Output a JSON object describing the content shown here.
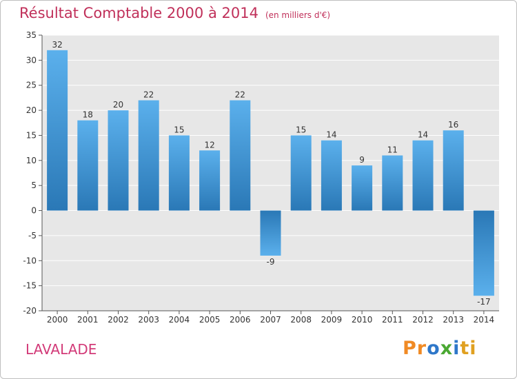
{
  "page": {
    "title": "Résultat Comptable 2000 à 2014",
    "subtitle": "(en milliers d'€)",
    "location": "LAVALADE",
    "logo": [
      "P",
      "r",
      "o",
      "x",
      "i",
      "t",
      "i"
    ]
  },
  "colors": {
    "title": "#c0305a",
    "bar_light": "#5bb0ec",
    "bar_dark": "#2a78b6",
    "plot_bg": "#e7e7e7",
    "gridline": "#ffffff",
    "logo": [
      "#f08a24",
      "#f08a24",
      "#2e77c9",
      "#4aa832",
      "#2e77c9",
      "#e0a020",
      "#e0a020"
    ]
  },
  "chart_data": {
    "type": "bar",
    "title": "Résultat Comptable 2000 à 2014",
    "subtitle": "(en milliers d'€)",
    "categories": [
      "2000",
      "2001",
      "2002",
      "2003",
      "2004",
      "2005",
      "2006",
      "2007",
      "2008",
      "2009",
      "2010",
      "2011",
      "2012",
      "2013",
      "2014"
    ],
    "values": [
      32,
      18,
      20,
      22,
      15,
      12,
      22,
      -9,
      15,
      14,
      9,
      11,
      14,
      16,
      -17
    ],
    "labels": [
      "32",
      "18",
      "20",
      "22",
      "15",
      "12",
      "22",
      "-9",
      "15",
      "14",
      "9",
      "11",
      "14",
      "16",
      "-17"
    ],
    "xlabel": "",
    "ylabel": "",
    "ylim": [
      -20,
      35
    ],
    "yticks": [
      -20,
      -15,
      -10,
      -5,
      0,
      5,
      10,
      15,
      20,
      25,
      30,
      35
    ],
    "ytick_labels": [
      "-20",
      "-15",
      "-10",
      "-5",
      "0",
      "5",
      "10",
      "15",
      "20",
      "25",
      "30",
      "35"
    ],
    "grid": true
  }
}
